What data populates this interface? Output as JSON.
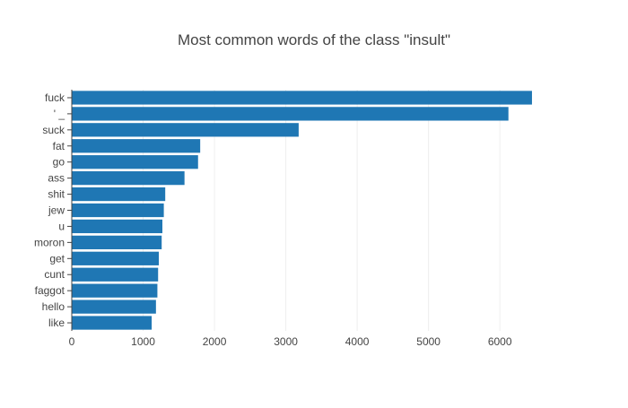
{
  "chart_data": {
    "type": "bar",
    "orientation": "horizontal",
    "title": "Most common words of the class \"insult\"",
    "xlabel": "",
    "ylabel": "",
    "categories": [
      "fuck",
      "' _",
      "suck",
      "fat",
      "go",
      "ass",
      "shit",
      "jew",
      "u",
      "moron",
      "get",
      "cunt",
      "faggot",
      "hello",
      "like"
    ],
    "values": [
      6450,
      6120,
      3180,
      1800,
      1770,
      1580,
      1310,
      1290,
      1270,
      1260,
      1220,
      1210,
      1200,
      1180,
      1120
    ],
    "xlim": [
      0,
      6790
    ],
    "xticks": [
      0,
      1000,
      2000,
      3000,
      4000,
      5000,
      6000
    ],
    "grid": true,
    "legend": "none",
    "bar_color": "#1f77b4",
    "grid_color": "#eeeeee",
    "text_color": "#444444"
  }
}
